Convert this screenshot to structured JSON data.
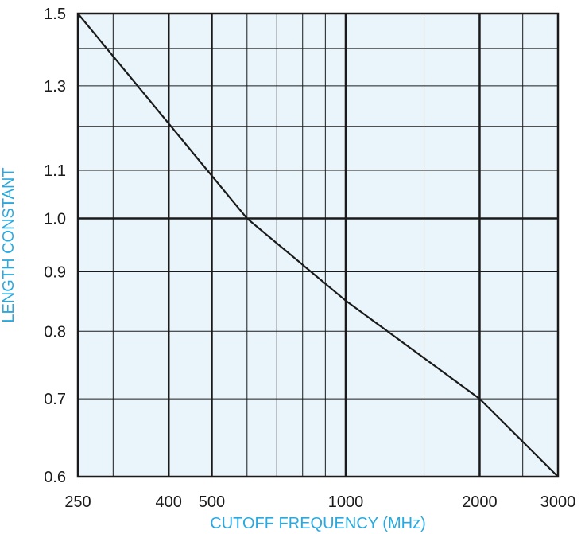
{
  "chart_data": {
    "type": "line",
    "title": "",
    "xlabel": "CUTOFF FREQUENCY (MHz)",
    "ylabel": "LENGTH CONSTANT",
    "x_scale": "log",
    "y_scale": "log",
    "xlim": [
      250,
      3000
    ],
    "ylim": [
      0.6,
      1.5
    ],
    "x_tick_labels": [
      "250",
      "400",
      "500",
      "1000",
      "2000",
      "3000"
    ],
    "y_tick_labels": [
      "1.5",
      "1.3",
      "1.1",
      "1.0",
      "0.9",
      "0.8",
      "0.7",
      "0.6"
    ],
    "grid": true,
    "major_grid_x": [
      400,
      500,
      1000,
      2000
    ],
    "minor_grid_x": [
      300,
      600,
      700,
      800,
      900,
      1500,
      2500
    ],
    "major_grid_y": [
      1.0
    ],
    "minor_grid_y": [
      0.7,
      0.8,
      0.9,
      1.1,
      1.2,
      1.3,
      1.4
    ],
    "series": [
      {
        "x": [
          250,
          600,
          1000,
          2000,
          3000
        ],
        "y": [
          1.5,
          1.0,
          0.85,
          0.7,
          0.6
        ]
      }
    ],
    "colors": {
      "plot_background": "#e9f5fb",
      "grid": "#1a1a1a",
      "line": "#1a1a1a",
      "axis_title": "#29a9df"
    }
  }
}
